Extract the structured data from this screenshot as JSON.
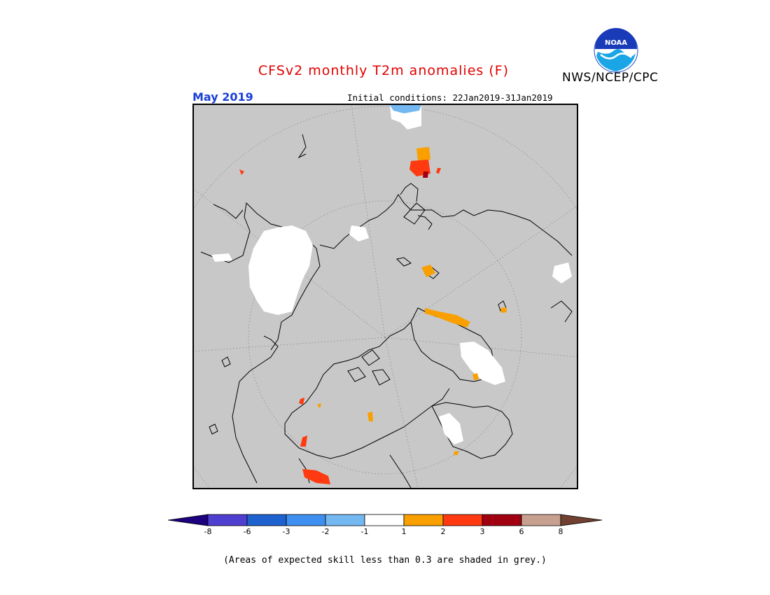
{
  "header": {
    "title": "CFSv2 monthly T2m anomalies (F)",
    "agency": "NWS/NCEP/CPC",
    "logo_text": "NOAA"
  },
  "map": {
    "month_label": "May 2019",
    "initial_conditions": "Initial conditions: 22Jan2019-31Jan2019",
    "projection": "north-polar-stereographic",
    "background_color": "#c8c8c8"
  },
  "legend": {
    "colors": [
      "#1c0080",
      "#4f3fd0",
      "#1e62d0",
      "#3f8ff0",
      "#73b8f0",
      "#ffffff",
      "#f9a000",
      "#ff3a10",
      "#a00010",
      "#c8a090",
      "#704030"
    ],
    "tick_labels": [
      "-8",
      "-6",
      "-3",
      "-2",
      "-1",
      "1",
      "2",
      "3",
      "6",
      "8"
    ]
  },
  "footnote": "(Areas of expected skill less than 0.3 are shaded in grey.)"
}
